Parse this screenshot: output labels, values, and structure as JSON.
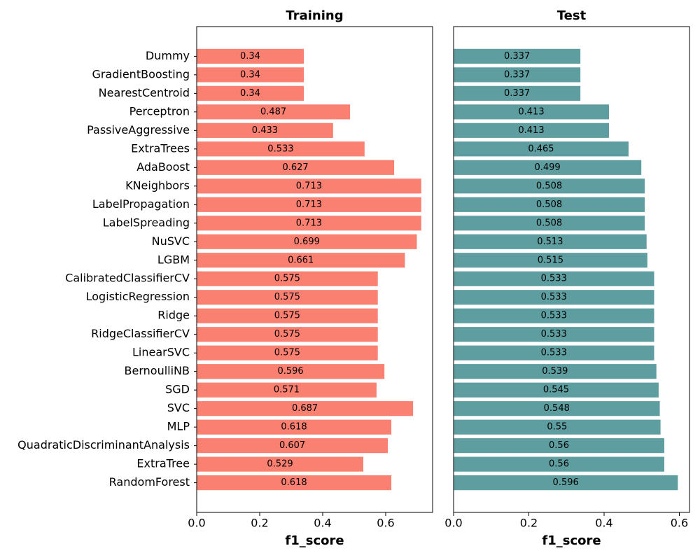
{
  "chart_data": [
    {
      "type": "barh",
      "title": "Training",
      "x_label": "f1_score",
      "color": "#fa8072",
      "categories": [
        "Dummy",
        "GradientBoosting",
        "NearestCentroid",
        "Perceptron",
        "PassiveAggressive",
        "ExtraTrees",
        "AdaBoost",
        "KNeighbors",
        "LabelPropagation",
        "LabelSpreading",
        "NuSVC",
        "LGBM",
        "CalibratedClassifierCV",
        "LogisticRegression",
        "Ridge",
        "RidgeClassifierCV",
        "LinearSVC",
        "BernoulliNB",
        "SGD",
        "SVC",
        "MLP",
        "QuadraticDiscriminantAnalysis",
        "ExtraTree",
        "RandomForest"
      ],
      "values": [
        0.34,
        0.34,
        0.34,
        0.487,
        0.433,
        0.533,
        0.627,
        0.713,
        0.713,
        0.713,
        0.699,
        0.661,
        0.575,
        0.575,
        0.575,
        0.575,
        0.575,
        0.596,
        0.571,
        0.687,
        0.618,
        0.607,
        0.529,
        0.618
      ],
      "xlim": [
        0,
        0.749
      ],
      "xticks": [
        {
          "value": 0,
          "label": "0.0"
        },
        0.2,
        0.4,
        0.6
      ]
    },
    {
      "type": "barh",
      "title": "Test",
      "x_label": "f1_score",
      "color": "#5f9ea0",
      "values": [
        0.337,
        0.337,
        0.337,
        0.413,
        0.413,
        0.465,
        0.499,
        0.508,
        0.508,
        0.508,
        0.513,
        0.515,
        0.533,
        0.533,
        0.533,
        0.533,
        0.533,
        0.539,
        0.545,
        0.548,
        0.55,
        0.56,
        0.56,
        0.596
      ],
      "xlim": [
        0,
        0.627
      ],
      "xticks": [
        {
          "value": 0,
          "label": "0.0"
        },
        0.2,
        0.4,
        0.6
      ]
    }
  ]
}
